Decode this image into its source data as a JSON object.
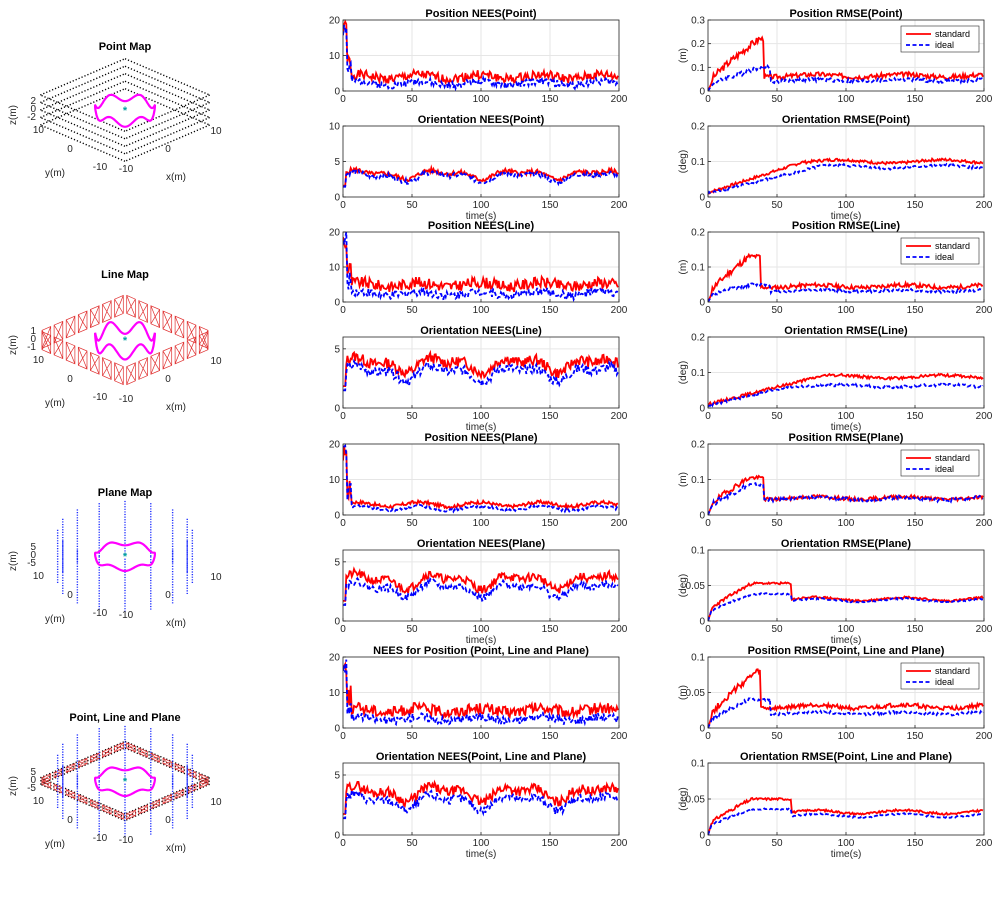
{
  "colors": {
    "standard": "#ff0000",
    "ideal": "#0000ff",
    "trajectory": "#ff00ff",
    "marker": "#00a0a0",
    "grid": "#e6e6e6",
    "axis": "#262626"
  },
  "maps": [
    {
      "title": "Point Map",
      "kind": "point",
      "zticks": [
        "2",
        "0",
        "-2"
      ],
      "ytick_a": "10",
      "ytick_b": "0",
      "ytick_c": "-10",
      "xtick_a": "-10",
      "xtick_b": "0",
      "xtick_c": "10",
      "xlabel": "x(m)",
      "ylabel": "y(m)",
      "zlabel": "z(m)"
    },
    {
      "title": "Line Map",
      "kind": "line",
      "zticks": [
        "1",
        "0",
        "-1"
      ],
      "ytick_a": "10",
      "ytick_b": "0",
      "ytick_c": "-10",
      "xtick_a": "-10",
      "xtick_b": "0",
      "xtick_c": "10",
      "xlabel": "x(m)",
      "ylabel": "y(m)",
      "zlabel": "z(m)"
    },
    {
      "title": "Plane Map",
      "kind": "plane",
      "zticks": [
        "5",
        "0",
        "-5"
      ],
      "ytick_a": "10",
      "ytick_b": "0",
      "ytick_c": "-10",
      "xtick_a": "-10",
      "xtick_b": "0",
      "xtick_c": "10",
      "xlabel": "x(m)",
      "ylabel": "y(m)",
      "zlabel": "z(m)"
    },
    {
      "title": "Point, Line and Plane",
      "kind": "all",
      "zticks": [
        "5",
        "0",
        "-5"
      ],
      "ytick_a": "10",
      "ytick_b": "0",
      "ytick_c": "-10",
      "xtick_a": "-10",
      "xtick_b": "0",
      "xtick_c": "10",
      "xlabel": "x(m)",
      "ylabel": "y(m)",
      "zlabel": "z(m)"
    }
  ],
  "chart_data": [
    {
      "id": "nees-pos-point",
      "type": "line",
      "title": "Position NEES(Point)",
      "xlabel": "",
      "ylabel": "",
      "xlim": [
        0,
        200
      ],
      "ylim": [
        0,
        20
      ],
      "xticks": [
        0,
        50,
        100,
        150,
        200
      ],
      "yticks": [
        0,
        10,
        20
      ],
      "grid": true,
      "series": [
        {
          "color": "standard",
          "style": "solid",
          "spike": 20,
          "base": 4,
          "noise": 1.3,
          "shape": "flat",
          "seed": 1
        },
        {
          "color": "ideal",
          "style": "dashed",
          "spike": 20,
          "base": 2.2,
          "noise": 1.0,
          "shape": "flat",
          "seed": 2
        }
      ]
    },
    {
      "id": "rmse-pos-point",
      "type": "line",
      "title": "Position RMSE(Point)",
      "xlabel": "",
      "ylabel": "(m)",
      "xlim": [
        0,
        200
      ],
      "ylim": [
        0,
        0.3
      ],
      "xticks": [
        0,
        50,
        100,
        150,
        200
      ],
      "yticks": [
        0,
        0.1,
        0.2,
        0.3
      ],
      "grid": true,
      "legend": [
        "standard",
        "ideal"
      ],
      "legend_position": "top-right",
      "series": [
        {
          "name": "standard",
          "color": "standard",
          "style": "solid",
          "peak": 0.22,
          "peak_t": 37,
          "drop_t": 40,
          "base": 0.065,
          "noise": 0.01,
          "shape": "hump",
          "seed": 3
        },
        {
          "name": "ideal",
          "color": "ideal",
          "style": "dashed",
          "peak": 0.1,
          "peak_t": 37,
          "drop_t": 45,
          "base": 0.045,
          "noise": 0.008,
          "shape": "hump",
          "seed": 4
        }
      ]
    },
    {
      "id": "nees-ori-point",
      "type": "line",
      "title": "Orientation NEES(Point)",
      "xlabel": "time(s)",
      "ylabel": "",
      "xlim": [
        0,
        200
      ],
      "ylim": [
        0,
        10
      ],
      "xticks": [
        0,
        50,
        100,
        150,
        200
      ],
      "yticks": [
        0,
        5,
        10
      ],
      "grid": true,
      "series": [
        {
          "color": "standard",
          "style": "solid",
          "base": 3.2,
          "noise": 0.35,
          "shape": "wavy",
          "seed": 5
        },
        {
          "color": "ideal",
          "style": "dashed",
          "base": 2.9,
          "noise": 0.35,
          "shape": "wavy",
          "seed": 6
        }
      ]
    },
    {
      "id": "rmse-ori-point",
      "type": "line",
      "title": "Orientation RMSE(Point)",
      "xlabel": "time(s)",
      "ylabel": "(deg)",
      "xlim": [
        0,
        200
      ],
      "ylim": [
        0,
        0.2
      ],
      "xticks": [
        0,
        50,
        100,
        150,
        200
      ],
      "yticks": [
        0,
        0.1,
        0.2
      ],
      "grid": true,
      "series": [
        {
          "color": "standard",
          "style": "solid",
          "plateau": 0.1,
          "rise_t": 70,
          "noise": 0.004,
          "shape": "rise",
          "seed": 7
        },
        {
          "color": "ideal",
          "style": "dashed",
          "plateau": 0.085,
          "rise_t": 80,
          "noise": 0.004,
          "shape": "rise",
          "seed": 8
        }
      ]
    },
    {
      "id": "nees-pos-line",
      "type": "line",
      "title": "Position NEES(Line)",
      "xlabel": "",
      "ylabel": "",
      "xlim": [
        0,
        200
      ],
      "ylim": [
        0,
        20
      ],
      "xticks": [
        0,
        50,
        100,
        150,
        200
      ],
      "yticks": [
        0,
        10,
        20
      ],
      "grid": true,
      "series": [
        {
          "color": "standard",
          "style": "solid",
          "spike": 20,
          "base": 5,
          "noise": 1.6,
          "shape": "flat",
          "seed": 9
        },
        {
          "color": "ideal",
          "style": "dashed",
          "spike": 20,
          "base": 2.4,
          "noise": 1.2,
          "shape": "flat",
          "seed": 10
        }
      ]
    },
    {
      "id": "rmse-pos-line",
      "type": "line",
      "title": "Position RMSE(Line)",
      "xlabel": "",
      "ylabel": "(m)",
      "xlim": [
        0,
        200
      ],
      "ylim": [
        0,
        0.2
      ],
      "xticks": [
        0,
        50,
        100,
        150,
        200
      ],
      "yticks": [
        0,
        0.1,
        0.2
      ],
      "grid": true,
      "legend": [
        "standard",
        "ideal"
      ],
      "legend_position": "top-right",
      "series": [
        {
          "name": "standard",
          "color": "standard",
          "style": "solid",
          "peak": 0.13,
          "peak_t": 30,
          "drop_t": 38,
          "base": 0.045,
          "noise": 0.006,
          "shape": "hump",
          "seed": 11
        },
        {
          "name": "ideal",
          "color": "ideal",
          "style": "dashed",
          "peak": 0.05,
          "peak_t": 30,
          "drop_t": 45,
          "base": 0.032,
          "noise": 0.004,
          "shape": "hump",
          "seed": 12
        }
      ]
    },
    {
      "id": "nees-ori-line",
      "type": "line",
      "title": "Orientation NEES(Line)",
      "xlabel": "time(s)",
      "ylabel": "",
      "xlim": [
        0,
        200
      ],
      "ylim": [
        0,
        6
      ],
      "xticks": [
        0,
        50,
        100,
        150,
        200
      ],
      "yticks": [
        0,
        5
      ],
      "grid": true,
      "series": [
        {
          "color": "standard",
          "style": "solid",
          "base": 3.7,
          "noise": 0.45,
          "shape": "wavy",
          "seed": 13
        },
        {
          "color": "ideal",
          "style": "dashed",
          "base": 3.0,
          "noise": 0.4,
          "shape": "wavy",
          "seed": 14
        }
      ]
    },
    {
      "id": "rmse-ori-line",
      "type": "line",
      "title": "Orientation RMSE(Line)",
      "xlabel": "time(s)",
      "ylabel": "(deg)",
      "xlim": [
        0,
        200
      ],
      "ylim": [
        0,
        0.2
      ],
      "xticks": [
        0,
        50,
        100,
        150,
        200
      ],
      "yticks": [
        0,
        0.1,
        0.2
      ],
      "grid": true,
      "series": [
        {
          "color": "standard",
          "style": "solid",
          "plateau": 0.088,
          "rise_t": 80,
          "noise": 0.004,
          "shape": "rise",
          "seed": 15
        },
        {
          "color": "ideal",
          "style": "dashed",
          "plateau": 0.062,
          "rise_t": 60,
          "noise": 0.004,
          "shape": "rise",
          "seed": 16
        }
      ]
    },
    {
      "id": "nees-pos-plane",
      "type": "line",
      "title": "Position NEES(Plane)",
      "xlabel": "",
      "ylabel": "",
      "xlim": [
        0,
        200
      ],
      "ylim": [
        0,
        20
      ],
      "xticks": [
        0,
        50,
        100,
        150,
        200
      ],
      "yticks": [
        0,
        10,
        20
      ],
      "grid": true,
      "series": [
        {
          "color": "standard",
          "style": "solid",
          "spike": 20,
          "base": 3.0,
          "noise": 0.5,
          "shape": "flat",
          "seed": 17
        },
        {
          "color": "ideal",
          "style": "dashed",
          "spike": 20,
          "base": 1.9,
          "noise": 0.4,
          "shape": "flat",
          "seed": 18
        }
      ]
    },
    {
      "id": "rmse-pos-plane",
      "type": "line",
      "title": "Position RMSE(Plane)",
      "xlabel": "",
      "ylabel": "(m)",
      "xlim": [
        0,
        200
      ],
      "ylim": [
        0,
        0.2
      ],
      "xticks": [
        0,
        50,
        100,
        150,
        200
      ],
      "yticks": [
        0,
        0.1,
        0.2
      ],
      "grid": true,
      "legend": [
        "standard",
        "ideal"
      ],
      "legend_position": "top-right",
      "series": [
        {
          "name": "standard",
          "color": "standard",
          "style": "solid",
          "peak": 0.105,
          "peak_t": 30,
          "drop_t": 40,
          "base": 0.048,
          "noise": 0.005,
          "shape": "hump",
          "seed": 19
        },
        {
          "name": "ideal",
          "color": "ideal",
          "style": "dashed",
          "peak": 0.085,
          "peak_t": 30,
          "drop_t": 40,
          "base": 0.046,
          "noise": 0.005,
          "shape": "hump",
          "seed": 20
        }
      ]
    },
    {
      "id": "nees-ori-plane",
      "type": "line",
      "title": "Orientation NEES(Plane)",
      "xlabel": "time(s)",
      "ylabel": "",
      "xlim": [
        0,
        200
      ],
      "ylim": [
        0,
        6
      ],
      "xticks": [
        0,
        50,
        100,
        150,
        200
      ],
      "yticks": [
        0,
        5
      ],
      "grid": true,
      "series": [
        {
          "color": "standard",
          "style": "solid",
          "base": 3.4,
          "noise": 0.35,
          "shape": "wavy",
          "seed": 21
        },
        {
          "color": "ideal",
          "style": "dashed",
          "base": 2.7,
          "noise": 0.3,
          "shape": "wavy",
          "seed": 22
        }
      ]
    },
    {
      "id": "rmse-ori-plane",
      "type": "line",
      "title": "Orientation RMSE(Plane)",
      "xlabel": "time(s)",
      "ylabel": "(deg)",
      "xlim": [
        0,
        200
      ],
      "ylim": [
        0,
        0.1
      ],
      "xticks": [
        0,
        50,
        100,
        150,
        200
      ],
      "yticks": [
        0,
        0.05,
        0.1
      ],
      "grid": true,
      "series": [
        {
          "color": "standard",
          "style": "solid",
          "peak": 0.053,
          "peak_t": 32,
          "drop_t": 60,
          "base": 0.031,
          "noise": 0.0015,
          "shape": "hump",
          "seed": 23
        },
        {
          "color": "ideal",
          "style": "dashed",
          "peak": 0.038,
          "peak_t": 32,
          "drop_t": 60,
          "base": 0.029,
          "noise": 0.0012,
          "shape": "hump",
          "seed": 24
        }
      ]
    },
    {
      "id": "nees-pos-all",
      "type": "line",
      "title": "NEES for Position (Point, Line and Plane)",
      "xlabel": "",
      "ylabel": "",
      "xlim": [
        0,
        200
      ],
      "ylim": [
        0,
        20
      ],
      "xticks": [
        0,
        50,
        100,
        150,
        200
      ],
      "yticks": [
        0,
        10,
        20
      ],
      "grid": true,
      "series": [
        {
          "color": "standard",
          "style": "solid",
          "spike": 20,
          "base": 5,
          "noise": 1.6,
          "shape": "flat",
          "seed": 25
        },
        {
          "color": "ideal",
          "style": "dashed",
          "spike": 20,
          "base": 2.6,
          "noise": 1.2,
          "shape": "flat",
          "seed": 26
        }
      ]
    },
    {
      "id": "rmse-pos-all",
      "type": "line",
      "title": "Position RMSE(Point, Line and Plane)",
      "xlabel": "",
      "ylabel": "(m)",
      "xlim": [
        0,
        200
      ],
      "ylim": [
        0,
        0.1
      ],
      "xticks": [
        0,
        50,
        100,
        150,
        200
      ],
      "yticks": [
        0,
        0.05,
        0.1
      ],
      "grid": true,
      "legend": [
        "standard",
        "ideal"
      ],
      "legend_position": "top-right",
      "series": [
        {
          "name": "standard",
          "color": "standard",
          "style": "solid",
          "peak": 0.08,
          "peak_t": 36,
          "drop_t": 38,
          "base": 0.03,
          "noise": 0.003,
          "shape": "hump",
          "seed": 27
        },
        {
          "name": "ideal",
          "color": "ideal",
          "style": "dashed",
          "peak": 0.04,
          "peak_t": 30,
          "drop_t": 45,
          "base": 0.021,
          "noise": 0.002,
          "shape": "hump",
          "seed": 28
        }
      ]
    },
    {
      "id": "nees-ori-all",
      "type": "line",
      "title": "Orientation NEES(Point, Line and Plane)",
      "xlabel": "time(s)",
      "ylabel": "",
      "xlim": [
        0,
        200
      ],
      "ylim": [
        0,
        6
      ],
      "xticks": [
        0,
        50,
        100,
        150,
        200
      ],
      "yticks": [
        0,
        5
      ],
      "grid": true,
      "series": [
        {
          "color": "standard",
          "style": "solid",
          "base": 3.5,
          "noise": 0.4,
          "shape": "wavy",
          "seed": 29
        },
        {
          "color": "ideal",
          "style": "dashed",
          "base": 2.8,
          "noise": 0.35,
          "shape": "wavy",
          "seed": 30
        }
      ]
    },
    {
      "id": "rmse-ori-all",
      "type": "line",
      "title": "Orientation RMSE(Point, Line and Plane)",
      "xlabel": "time(s)",
      "ylabel": "(deg)",
      "xlim": [
        0,
        200
      ],
      "ylim": [
        0,
        0.1
      ],
      "xticks": [
        0,
        50,
        100,
        150,
        200
      ],
      "yticks": [
        0,
        0.05,
        0.1
      ],
      "grid": true,
      "series": [
        {
          "color": "standard",
          "style": "solid",
          "peak": 0.05,
          "peak_t": 32,
          "drop_t": 60,
          "base": 0.032,
          "noise": 0.0015,
          "shape": "hump",
          "seed": 31
        },
        {
          "color": "ideal",
          "style": "dashed",
          "peak": 0.036,
          "peak_t": 32,
          "drop_t": 60,
          "base": 0.027,
          "noise": 0.0012,
          "shape": "hump",
          "seed": 32
        }
      ]
    }
  ]
}
